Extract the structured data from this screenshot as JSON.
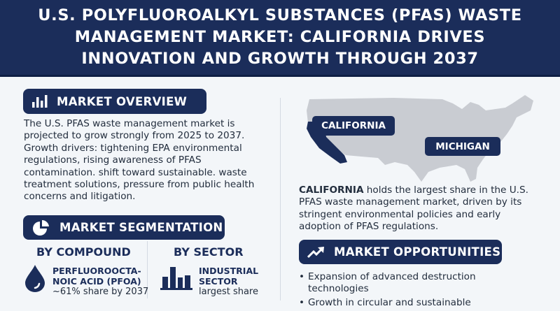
{
  "header": {
    "title_lines": [
      "U.S. POLYFLUOROALKYL SUBSTANCES (PFAS) WASTE",
      "MANAGEMENT MARKET: CALIFORNIA DRIVES",
      "INNOVATION AND GROWTH THROUGH 2037"
    ]
  },
  "colors": {
    "navy": "#1b2d5a",
    "background": "#f3f6f9",
    "map_gray": "#c9ccd2"
  },
  "overview": {
    "icon": "bar-chart-icon",
    "title": "MARKET OVERVIEW",
    "body": "The U.S. PFAS waste management market is projected to grow strongly from 2025 to 2037. Growth drivers: tightening EPA environmental regulations, rising awareness of PFAS contamination. shift toward sustainable. waste treatment solutions, pressure from public health concerns and litigation."
  },
  "segmentation": {
    "icon": "pie-chart-icon",
    "title": "MARKET SEGMENTATION",
    "compound": {
      "heading": "BY COMPOUND",
      "icon": "droplet-icon",
      "name_line1": "PERFLUOROOCTA-",
      "name_line2": "NOIC ACID (PFOA)",
      "detail": "~61% share by 2037"
    },
    "sector": {
      "heading": "BY SECTOR",
      "icon": "factory-icon",
      "name_line1": "INDUSTRIAL",
      "name_line2": "SECTOR",
      "detail": "largest share"
    }
  },
  "map": {
    "label_california": "CALIFORNIA",
    "label_michigan": "MICHIGAN",
    "highlight_bold": "CALIFORNIA",
    "highlight_rest": " holds the largest share in the U.S. PFAS waste management market, driven by its stringent environmental policies and early adoption of PFAS regulations."
  },
  "opportunities": {
    "icon": "trend-up-icon",
    "title": "MARKET OPPORTUNITIES",
    "items": [
      "Expansion of advanced destruction technologies",
      "Growth in circular and sustainable"
    ]
  }
}
